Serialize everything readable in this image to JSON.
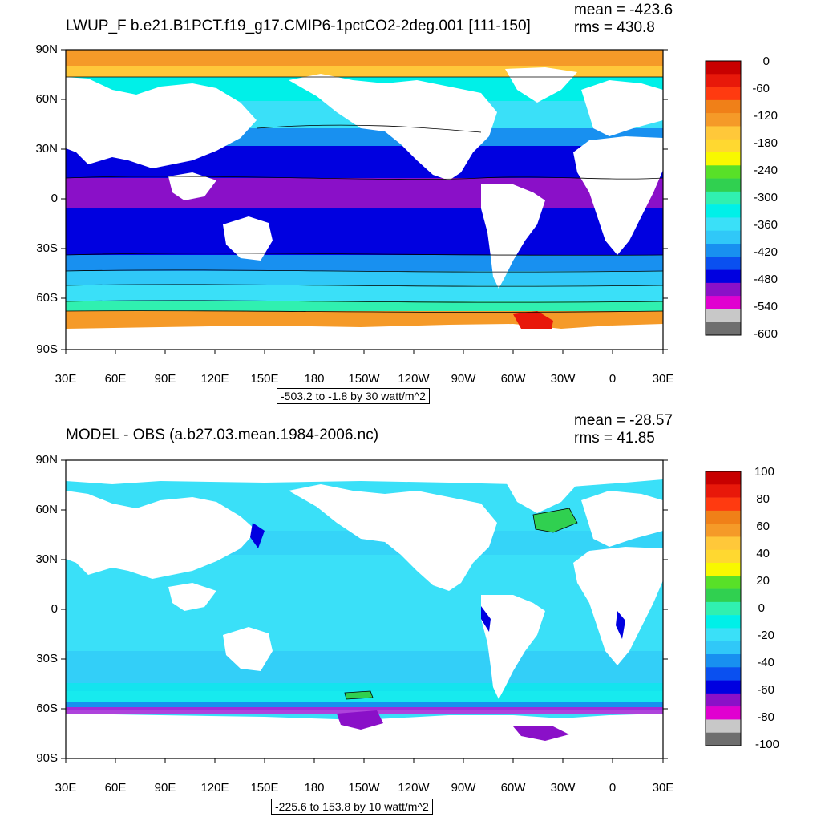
{
  "panels": [
    {
      "title": "LWUP_F b.e21.B1PCT.f19_g17.CMIP6-1pctCO2-2deg.001 [111-150]",
      "mean": "mean = -423.6",
      "rms": "rms = 430.8",
      "info": "-503.2 to -1.8 by 30 watt/m^2",
      "y_labels": [
        "90N",
        "60N",
        "30N",
        "0",
        "30S",
        "60S",
        "90S"
      ],
      "x_labels": [
        "30E",
        "60E",
        "90E",
        "120E",
        "150E",
        "180",
        "150W",
        "120W",
        "90W",
        "60W",
        "30W",
        "0",
        "30E"
      ],
      "colorbar_labels": [
        "0",
        "-60",
        "-120",
        "-180",
        "-240",
        "-300",
        "-360",
        "-420",
        "-480",
        "-540",
        "-600"
      ],
      "colorbar_colors": [
        "#c80000",
        "#e8180a",
        "#ff3a10",
        "#f08018",
        "#f59a28",
        "#ffc83a",
        "#ffd830",
        "#f8f800",
        "#58e028",
        "#30d050",
        "#30f0b0",
        "#00f0e8",
        "#3ae0f8",
        "#30c8f8",
        "#1890f0",
        "#0a50f0",
        "#0000e0",
        "#8a10c8",
        "#e000d0",
        "#c8c8c8",
        "#6e6e6e"
      ]
    },
    {
      "title": "MODEL - OBS (a.b27.03.mean.1984-2006.nc)",
      "mean": "mean = -28.57",
      "rms": "rms = 41.85",
      "info": "-225.6 to 153.8 by 10 watt/m^2",
      "y_labels": [
        "90N",
        "60N",
        "30N",
        "0",
        "30S",
        "60S",
        "90S"
      ],
      "x_labels": [
        "30E",
        "60E",
        "90E",
        "120E",
        "150E",
        "180",
        "150W",
        "120W",
        "90W",
        "60W",
        "30W",
        "0",
        "30E"
      ],
      "colorbar_labels": [
        "100",
        "80",
        "60",
        "40",
        "20",
        "0",
        "-20",
        "-40",
        "-60",
        "-80",
        "-100"
      ],
      "colorbar_colors": [
        "#c80000",
        "#e8180a",
        "#ff3a10",
        "#f08018",
        "#f59a28",
        "#ffc83a",
        "#ffd830",
        "#f8f800",
        "#58e028",
        "#30d050",
        "#30f0b0",
        "#00f0e8",
        "#3ae0f8",
        "#30c8f8",
        "#1890f0",
        "#0a50f0",
        "#0000e0",
        "#8a10c8",
        "#e000d0",
        "#c8c8c8",
        "#6e6e6e"
      ]
    }
  ]
}
